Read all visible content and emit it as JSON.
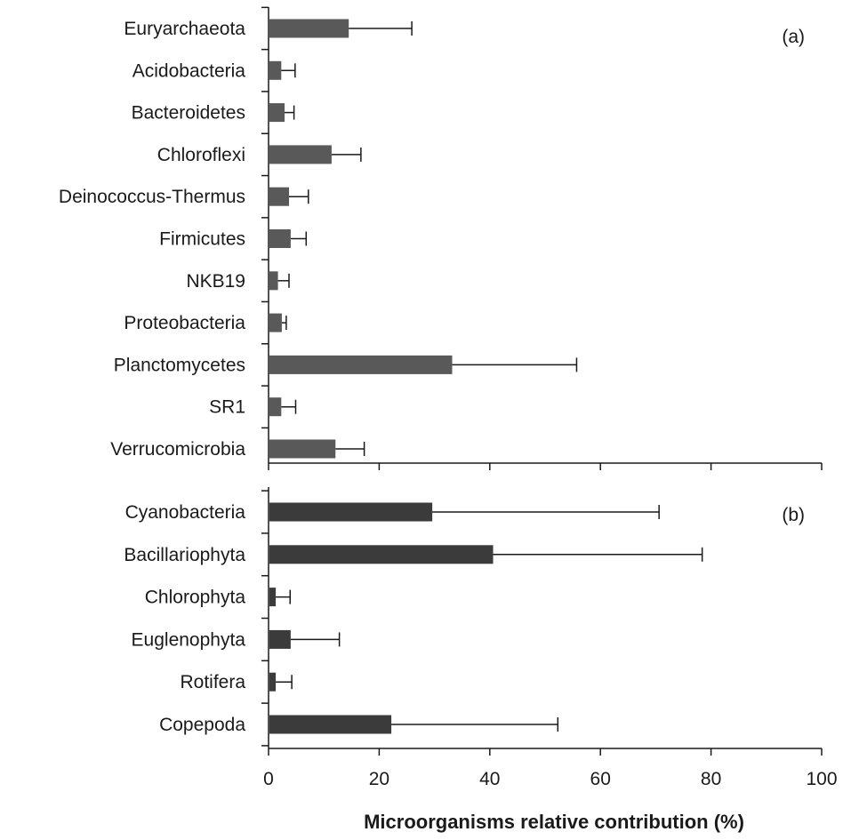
{
  "chart_data": {
    "type": "bar",
    "orientation": "horizontal",
    "xlabel": "Microorganisms relative contribution (%)",
    "xlim": [
      0,
      100
    ],
    "xticks": [
      0,
      20,
      40,
      60,
      80,
      100
    ],
    "grid": false,
    "panels": [
      {
        "label": "(a)",
        "color": "#595959",
        "categories": [
          "Euryarchaeota",
          "Acidobacteria",
          "Bacteroidetes",
          "Chloroflexi",
          "Deinococcus-Thermus",
          "Firmicutes",
          "NKB19",
          "Proteobacteria",
          "Planctomycetes",
          "SR1",
          "Verrucomicrobia"
        ],
        "values": [
          14.5,
          2.3,
          2.9,
          11.4,
          3.7,
          4.0,
          1.7,
          2.4,
          33.2,
          2.3,
          12.1
        ],
        "errors": [
          11.4,
          2.5,
          1.7,
          5.3,
          3.5,
          2.8,
          2.0,
          0.8,
          22.5,
          2.6,
          5.2
        ]
      },
      {
        "label": "(b)",
        "color": "#3b3b3b",
        "categories": [
          "Cyanobacteria",
          "Bacillariophyta",
          "Chlorophyta",
          "Euglenophyta",
          "Rotifera",
          "Copepoda"
        ],
        "values": [
          29.6,
          40.6,
          1.3,
          4.0,
          1.3,
          22.2
        ],
        "errors": [
          41.0,
          37.8,
          2.6,
          8.8,
          2.9,
          30.1
        ]
      }
    ]
  }
}
